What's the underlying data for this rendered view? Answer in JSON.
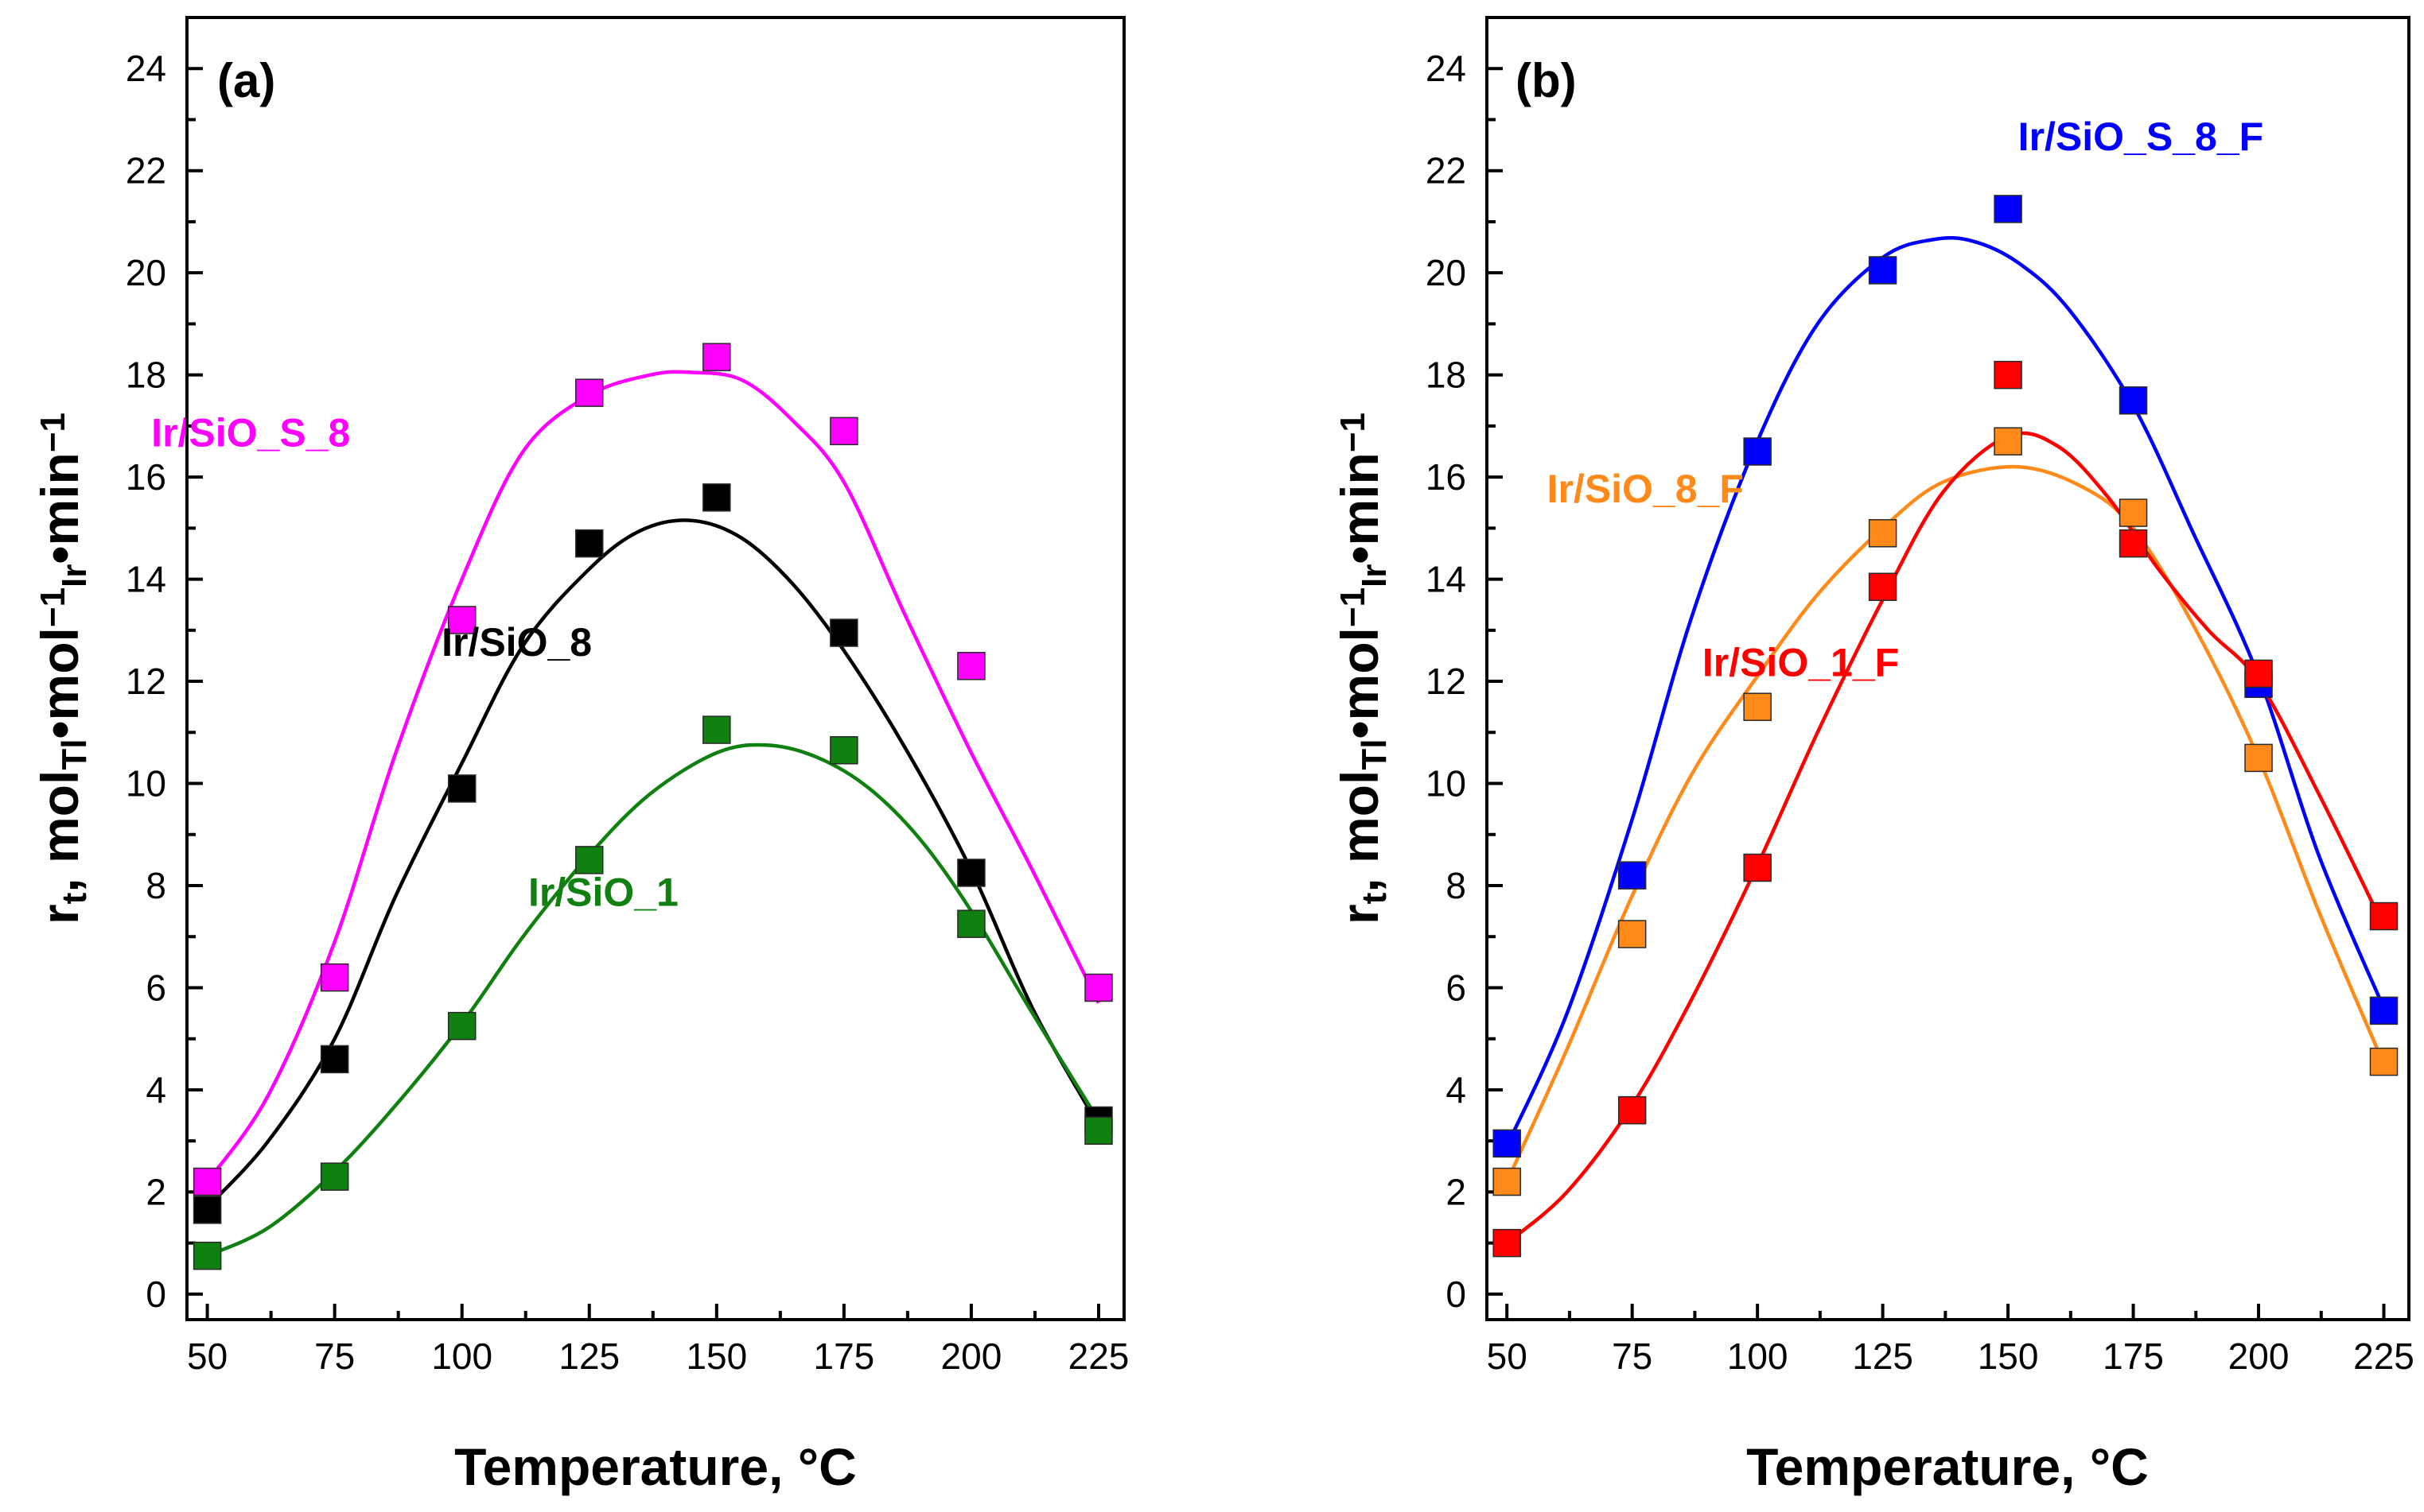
{
  "chart_data": [
    {
      "type": "scatter",
      "panel_label": "(a)",
      "xlabel": "Temperature, °C",
      "ylabel": {
        "base": "r",
        "sub_t": "t",
        "comma": ", mol",
        "sub_tl": "Tl",
        "dot1": "•mol",
        "sup1": "−1",
        "sub_ir": "Ir",
        "dot2": "•min",
        "sup2": "−1"
      },
      "xlim": [
        46,
        230
      ],
      "ylim": [
        -0.5,
        25
      ],
      "x_ticks": [
        50,
        75,
        100,
        125,
        150,
        175,
        200,
        225
      ],
      "y_ticks": [
        0,
        2,
        4,
        6,
        8,
        10,
        12,
        14,
        16,
        18,
        20,
        22,
        24
      ],
      "series": [
        {
          "name": "Ir/SiO_S_8",
          "color": "#ff00ff",
          "label_at": [
            39,
            16.6
          ],
          "x": [
            50,
            75,
            100,
            125,
            150,
            175,
            200,
            225
          ],
          "y": [
            2.2,
            6.2,
            13.2,
            17.65,
            18.35,
            16.9,
            12.3,
            6.0
          ],
          "fit": [
            [
              50,
              2.2
            ],
            [
              62,
              3.9
            ],
            [
              75,
              6.9
            ],
            [
              87,
              10.6
            ],
            [
              100,
              14.0
            ],
            [
              112,
              16.5
            ],
            [
              125,
              17.6
            ],
            [
              137,
              18.0
            ],
            [
              145,
              18.05
            ],
            [
              155,
              17.9
            ],
            [
              165,
              17.1
            ],
            [
              175,
              15.9
            ],
            [
              187,
              13.3
            ],
            [
              200,
              10.6
            ],
            [
              212,
              8.3
            ],
            [
              225,
              5.7
            ]
          ]
        },
        {
          "name": "Ir/SiO_8",
          "color": "#000000",
          "label_at": [
            96,
            12.5
          ],
          "x": [
            50,
            75,
            100,
            125,
            150,
            175,
            200,
            225
          ],
          "y": [
            1.65,
            4.6,
            9.9,
            14.7,
            15.6,
            12.95,
            8.25,
            3.4
          ],
          "fit": [
            [
              50,
              1.7
            ],
            [
              62,
              3.0
            ],
            [
              75,
              5.0
            ],
            [
              87,
              7.8
            ],
            [
              100,
              10.4
            ],
            [
              112,
              12.7
            ],
            [
              125,
              14.2
            ],
            [
              135,
              14.95
            ],
            [
              145,
              15.15
            ],
            [
              155,
              14.8
            ],
            [
              165,
              13.9
            ],
            [
              175,
              12.6
            ],
            [
              187,
              10.7
            ],
            [
              200,
              8.3
            ],
            [
              212,
              5.6
            ],
            [
              225,
              3.3
            ]
          ]
        },
        {
          "name": "Ir/SiO_1",
          "color": "#108010",
          "label_at": [
            113,
            7.6
          ],
          "x": [
            50,
            75,
            100,
            125,
            150,
            175,
            200,
            225
          ],
          "y": [
            0.75,
            2.3,
            5.25,
            8.5,
            11.05,
            10.65,
            7.25,
            3.2
          ],
          "fit": [
            [
              50,
              0.75
            ],
            [
              62,
              1.3
            ],
            [
              75,
              2.4
            ],
            [
              87,
              3.7
            ],
            [
              100,
              5.3
            ],
            [
              112,
              7.0
            ],
            [
              125,
              8.6
            ],
            [
              137,
              9.8
            ],
            [
              150,
              10.6
            ],
            [
              160,
              10.75
            ],
            [
              170,
              10.5
            ],
            [
              180,
              9.9
            ],
            [
              190,
              8.9
            ],
            [
              200,
              7.5
            ],
            [
              212,
              5.5
            ],
            [
              225,
              3.4
            ]
          ]
        }
      ]
    },
    {
      "type": "scatter",
      "panel_label": "(b)",
      "xlabel": "Temperature, °C",
      "ylabel": {
        "base": "r",
        "sub_t": "t",
        "comma": ", mol",
        "sub_tl": "Tl",
        "dot1": "•mol",
        "sup1": "−1",
        "sub_ir": "Ir",
        "dot2": "•min",
        "sup2": "−1"
      },
      "xlim": [
        46,
        230
      ],
      "ylim": [
        -0.5,
        25
      ],
      "x_ticks": [
        50,
        75,
        100,
        125,
        150,
        175,
        200,
        225
      ],
      "y_ticks": [
        0,
        2,
        4,
        6,
        8,
        10,
        12,
        14,
        16,
        18,
        20,
        22,
        24
      ],
      "series": [
        {
          "name": "Ir/SiO_S_8_F",
          "color": "#0000ff",
          "label_at": [
            152,
            22.4
          ],
          "x": [
            50,
            75,
            100,
            125,
            150,
            175,
            200,
            225
          ],
          "y": [
            2.95,
            8.2,
            16.5,
            20.05,
            21.25,
            17.5,
            11.95,
            5.55
          ],
          "fit": [
            [
              50,
              2.9
            ],
            [
              62,
              5.5
            ],
            [
              75,
              9.3
            ],
            [
              87,
              13.3
            ],
            [
              100,
              16.7
            ],
            [
              112,
              19.0
            ],
            [
              125,
              20.3
            ],
            [
              135,
              20.65
            ],
            [
              143,
              20.62
            ],
            [
              152,
              20.2
            ],
            [
              162,
              19.3
            ],
            [
              175,
              17.4
            ],
            [
              187,
              14.9
            ],
            [
              200,
              12.1
            ],
            [
              212,
              8.6
            ],
            [
              225,
              5.6
            ]
          ]
        },
        {
          "name": "Ir/SiO_8_F",
          "color": "#ff8a1a",
          "label_at": [
            58,
            15.5
          ],
          "x": [
            50,
            75,
            100,
            125,
            150,
            175,
            200,
            225
          ],
          "y": [
            2.2,
            7.05,
            11.5,
            14.9,
            16.7,
            15.3,
            10.5,
            4.55
          ],
          "fit": [
            [
              50,
              2.2
            ],
            [
              62,
              4.8
            ],
            [
              75,
              7.8
            ],
            [
              87,
              10.2
            ],
            [
              100,
              12.1
            ],
            [
              112,
              13.7
            ],
            [
              125,
              15.0
            ],
            [
              137,
              15.9
            ],
            [
              152,
              16.2
            ],
            [
              165,
              15.8
            ],
            [
              175,
              15.0
            ],
            [
              187,
              13.1
            ],
            [
              200,
              10.5
            ],
            [
              212,
              7.5
            ],
            [
              225,
              4.5
            ]
          ]
        },
        {
          "name": "Ir/SiO_1_F",
          "color": "#ff0000",
          "label_at": [
            89,
            12.1
          ],
          "x": [
            50,
            75,
            100,
            125,
            150,
            175,
            200,
            225
          ],
          "y": [
            1.0,
            3.6,
            8.35,
            13.85,
            18.0,
            14.7,
            12.15,
            7.4
          ],
          "fit": [
            [
              50,
              1.0
            ],
            [
              62,
              2.0
            ],
            [
              75,
              3.7
            ],
            [
              87,
              5.8
            ],
            [
              100,
              8.4
            ],
            [
              112,
              11.0
            ],
            [
              125,
              13.6
            ],
            [
              137,
              15.7
            ],
            [
              150,
              16.8
            ],
            [
              160,
              16.6
            ],
            [
              170,
              15.6
            ],
            [
              180,
              14.2
            ],
            [
              190,
              13.0
            ],
            [
              200,
              12.0
            ],
            [
              212,
              9.8
            ],
            [
              225,
              7.2
            ]
          ]
        }
      ]
    }
  ]
}
